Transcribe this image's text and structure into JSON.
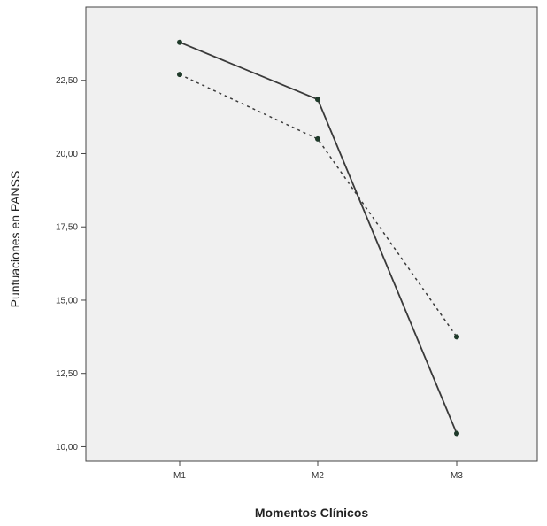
{
  "chart_data": {
    "type": "line",
    "xlabel": "Momentos Clínicos",
    "ylabel": "Puntuaciones en PANSS",
    "categories": [
      "M1",
      "M2",
      "M3"
    ],
    "y_ticks": [
      "10,00",
      "12,50",
      "15,00",
      "17,50",
      "20,00",
      "22,50"
    ],
    "ylim": [
      9.5,
      25.0
    ],
    "grid": false,
    "legend": "none",
    "series": [
      {
        "style": "solid",
        "color": "#3a3a3a",
        "values": [
          23.8,
          21.85,
          10.45
        ]
      },
      {
        "style": "dotted",
        "color": "#3a3a3a",
        "values": [
          22.7,
          20.5,
          13.75
        ]
      }
    ],
    "plot_background": "#f0f0f0"
  }
}
